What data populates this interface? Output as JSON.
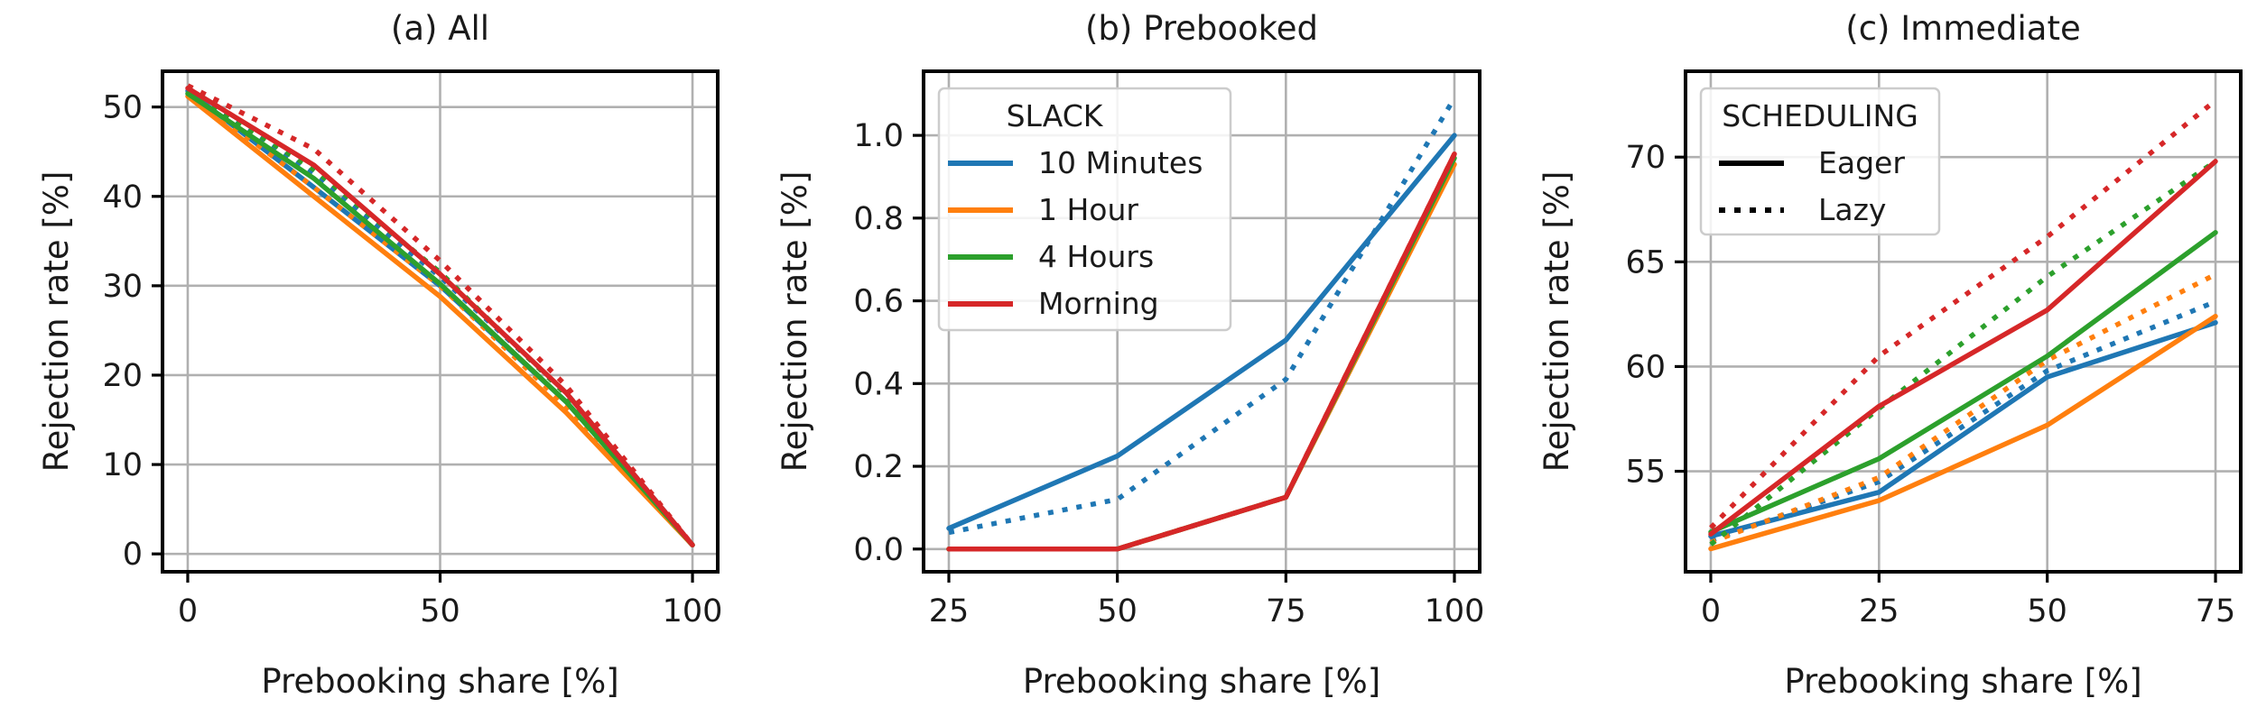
{
  "chart_data": [
    {
      "type": "line",
      "title": "(a) All",
      "xlabel": "Prebooking share [%]",
      "ylabel": "Rejection rate [%]",
      "xlim": [
        -5,
        105
      ],
      "ylim": [
        -2,
        54
      ],
      "xticks": [
        0,
        50,
        100
      ],
      "yticks": [
        0,
        10,
        20,
        30,
        40,
        50
      ],
      "grid": true,
      "legend": null,
      "series": [
        {
          "slack": "10 Minutes",
          "scheduling": "Eager",
          "color": "#1f77b4",
          "x": [
            0,
            25,
            50,
            75,
            100
          ],
          "y": [
            51.8,
            41.0,
            30.0,
            17.0,
            1.0
          ]
        },
        {
          "slack": "10 Minutes",
          "scheduling": "Lazy",
          "color": "#1f77b4",
          "x": [
            0,
            25,
            50,
            75,
            100
          ],
          "y": [
            51.9,
            42.5,
            31.0,
            18.0,
            1.0
          ]
        },
        {
          "slack": "1 Hour",
          "scheduling": "Eager",
          "color": "#ff7f0e",
          "x": [
            0,
            25,
            50,
            75,
            100
          ],
          "y": [
            51.2,
            40.0,
            28.8,
            15.8,
            1.0
          ]
        },
        {
          "slack": "1 Hour",
          "scheduling": "Lazy",
          "color": "#ff7f0e",
          "x": [
            0,
            25,
            50,
            75,
            100
          ],
          "y": [
            51.6,
            41.0,
            30.0,
            16.5,
            1.0
          ]
        },
        {
          "slack": "4 Hours",
          "scheduling": "Eager",
          "color": "#2ca02c",
          "x": [
            0,
            25,
            50,
            75,
            100
          ],
          "y": [
            51.5,
            42.0,
            30.2,
            17.0,
            1.0
          ]
        },
        {
          "slack": "4 Hours",
          "scheduling": "Lazy",
          "color": "#2ca02c",
          "x": [
            0,
            25,
            50,
            75,
            100
          ],
          "y": [
            51.8,
            43.0,
            31.5,
            17.8,
            1.0
          ]
        },
        {
          "slack": "Morning",
          "scheduling": "Eager",
          "color": "#d62728",
          "x": [
            0,
            25,
            50,
            75,
            100
          ],
          "y": [
            52.1,
            43.5,
            31.3,
            18.0,
            1.0
          ]
        },
        {
          "slack": "Morning",
          "scheduling": "Lazy",
          "color": "#d62728",
          "x": [
            0,
            25,
            50,
            75,
            100
          ],
          "y": [
            52.4,
            45.3,
            32.8,
            18.8,
            1.0
          ]
        }
      ]
    },
    {
      "type": "line",
      "title": "(b) Prebooked",
      "xlabel": "Prebooking share [%]",
      "ylabel": "Rejection rate [%]",
      "xlim": [
        21.25,
        103.75
      ],
      "ylim": [
        -0.055,
        1.155
      ],
      "xticks": [
        25,
        50,
        75,
        100
      ],
      "yticks": [
        0.0,
        0.2,
        0.4,
        0.6,
        0.8,
        1.0
      ],
      "ytick_labels": [
        "0.0",
        "0.2",
        "0.4",
        "0.6",
        "0.8",
        "1.0"
      ],
      "grid": true,
      "legend": {
        "placement": "top-left",
        "title": "SLACK",
        "entries": [
          {
            "label": "10 Minutes",
            "color": "#1f77b4"
          },
          {
            "label": "1 Hour",
            "color": "#ff7f0e"
          },
          {
            "label": "4 Hours",
            "color": "#2ca02c"
          },
          {
            "label": "Morning",
            "color": "#d62728"
          }
        ]
      },
      "series": [
        {
          "slack": "10 Minutes",
          "scheduling": "Eager",
          "color": "#1f77b4",
          "x": [
            25,
            50,
            75,
            100
          ],
          "y": [
            0.05,
            0.225,
            0.505,
            1.0
          ]
        },
        {
          "slack": "10 Minutes",
          "scheduling": "Lazy",
          "color": "#1f77b4",
          "x": [
            25,
            50,
            75,
            100
          ],
          "y": [
            0.04,
            0.12,
            0.41,
            1.09
          ]
        },
        {
          "slack": "1 Hour",
          "scheduling": "Eager",
          "color": "#ff7f0e",
          "x": [
            25,
            50,
            75,
            100
          ],
          "y": [
            0.0,
            0.0,
            0.125,
            0.93
          ]
        },
        {
          "slack": "1 Hour",
          "scheduling": "Lazy",
          "color": "#ff7f0e",
          "x": [
            25,
            50,
            75,
            100
          ],
          "y": [
            0.0,
            0.0,
            0.125,
            0.94
          ]
        },
        {
          "slack": "4 Hours",
          "scheduling": "Eager",
          "color": "#2ca02c",
          "x": [
            25,
            50,
            75,
            100
          ],
          "y": [
            0.0,
            0.0,
            0.125,
            0.945
          ]
        },
        {
          "slack": "4 Hours",
          "scheduling": "Lazy",
          "color": "#2ca02c",
          "x": [
            25,
            50,
            75,
            100
          ],
          "y": [
            0.0,
            0.0,
            0.125,
            0.95
          ]
        },
        {
          "slack": "Morning",
          "scheduling": "Eager",
          "color": "#d62728",
          "x": [
            25,
            50,
            75,
            100
          ],
          "y": [
            0.0,
            0.0,
            0.125,
            0.955
          ]
        },
        {
          "slack": "Morning",
          "scheduling": "Lazy",
          "color": "#d62728",
          "x": [
            25,
            50,
            75,
            100
          ],
          "y": [
            0.0,
            0.0,
            0.125,
            0.955
          ]
        }
      ]
    },
    {
      "type": "line",
      "title": "(c) Immediate",
      "xlabel": "Prebooking share [%]",
      "ylabel": "Rejection rate [%]",
      "xlim": [
        -3.75,
        78.75
      ],
      "ylim": [
        50.2,
        74.1
      ],
      "xticks": [
        0,
        25,
        50,
        75
      ],
      "yticks": [
        55,
        60,
        65,
        70
      ],
      "grid": true,
      "legend": {
        "placement": "top-left",
        "title": "SCHEDULING",
        "entries": [
          {
            "label": "Eager",
            "style": "solid"
          },
          {
            "label": "Lazy",
            "style": "dotted"
          }
        ]
      },
      "series": [
        {
          "slack": "10 Minutes",
          "scheduling": "Eager",
          "color": "#1f77b4",
          "x": [
            0,
            25,
            50,
            75
          ],
          "y": [
            51.9,
            54.0,
            59.5,
            62.1
          ]
        },
        {
          "slack": "10 Minutes",
          "scheduling": "Lazy",
          "color": "#1f77b4",
          "x": [
            0,
            25,
            50,
            75
          ],
          "y": [
            51.7,
            54.5,
            59.8,
            63.1
          ]
        },
        {
          "slack": "1 Hour",
          "scheduling": "Eager",
          "color": "#ff7f0e",
          "x": [
            0,
            25,
            50,
            75
          ],
          "y": [
            51.3,
            53.6,
            57.2,
            62.4
          ]
        },
        {
          "slack": "1 Hour",
          "scheduling": "Lazy",
          "color": "#ff7f0e",
          "x": [
            0,
            25,
            50,
            75
          ],
          "y": [
            51.6,
            54.7,
            60.3,
            64.4
          ]
        },
        {
          "slack": "4 Hours",
          "scheduling": "Eager",
          "color": "#2ca02c",
          "x": [
            0,
            25,
            50,
            75
          ],
          "y": [
            52.1,
            55.6,
            60.5,
            66.4
          ]
        },
        {
          "slack": "4 Hours",
          "scheduling": "Lazy",
          "color": "#2ca02c",
          "x": [
            0,
            25,
            50,
            75
          ],
          "y": [
            51.5,
            58.0,
            64.3,
            69.8
          ]
        },
        {
          "slack": "Morning",
          "scheduling": "Eager",
          "color": "#d62728",
          "x": [
            0,
            25,
            50,
            75
          ],
          "y": [
            52.0,
            58.1,
            62.7,
            69.8
          ]
        },
        {
          "slack": "Morning",
          "scheduling": "Lazy",
          "color": "#d62728",
          "x": [
            0,
            25,
            50,
            75
          ],
          "y": [
            52.3,
            60.5,
            66.2,
            72.7
          ]
        }
      ]
    }
  ]
}
